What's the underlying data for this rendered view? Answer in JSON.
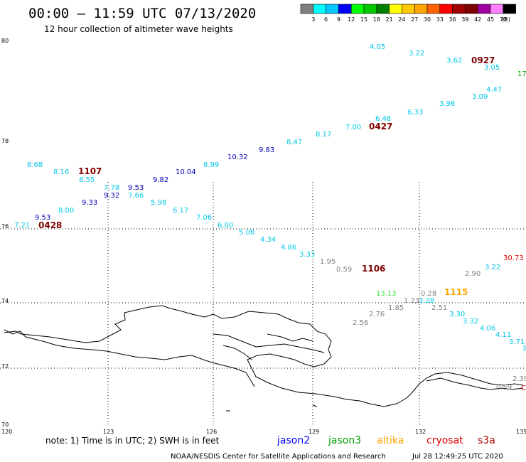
{
  "title": "00:00 — 11:59 UTC 07/13/2020",
  "subtitle": "12 hour collection of altimeter wave heights",
  "color_scale": {
    "ticks": [
      "3",
      "6",
      "9",
      "12",
      "15",
      "18",
      "21",
      "24",
      "27",
      "30",
      "33",
      "36",
      "39",
      "42",
      "45",
      "70"
    ],
    "unit": "(ft)",
    "colors": [
      "#808080",
      "#00ffff",
      "#00c8ff",
      "#0000ff",
      "#00ff00",
      "#00c800",
      "#008000",
      "#ffff00",
      "#ffc800",
      "#ffa500",
      "#ff6400",
      "#ff0000",
      "#a00000",
      "#800000",
      "#a000a0",
      "#ff80ff",
      "#000000"
    ]
  },
  "axes": {
    "lat_labels": [
      "80",
      "78",
      "76",
      "74",
      "72",
      "70"
    ],
    "lon_labels": [
      "120",
      "123",
      "126",
      "129",
      "132",
      "135"
    ]
  },
  "chart_data": {
    "type": "scatter",
    "readings": [
      {
        "text": "4.05",
        "color": "#00c8e6"
      },
      {
        "text": "3.22",
        "color": "#00c8e6"
      },
      {
        "text": "3.62",
        "color": "#00c8e6"
      },
      {
        "text": "3.05",
        "color": "#00c8e6"
      },
      {
        "text": "17",
        "color": "#00b000"
      },
      {
        "text": "4.47",
        "color": "#00c8e6"
      },
      {
        "text": "3.09",
        "color": "#00c8e6"
      },
      {
        "text": "3.98",
        "color": "#00c8e6"
      },
      {
        "text": "6.33",
        "color": "#00c8e6"
      },
      {
        "text": "6.46",
        "color": "#00c8e6"
      },
      {
        "text": "7.00",
        "color": "#00c8e6"
      },
      {
        "text": "8.17",
        "color": "#00c8e6"
      },
      {
        "text": "8.47",
        "color": "#00c8e6"
      },
      {
        "text": "9.83",
        "color": "#0000b4"
      },
      {
        "text": "10.32",
        "color": "#0000b4"
      },
      {
        "text": "8.99",
        "color": "#00c8e6"
      },
      {
        "text": "10.04",
        "color": "#0000b4"
      },
      {
        "text": "9.82",
        "color": "#0000b4"
      },
      {
        "text": "9.53",
        "color": "#0000b4"
      },
      {
        "text": "7.66",
        "color": "#00c8e6"
      },
      {
        "text": "7.78",
        "color": "#00c8e6"
      },
      {
        "text": "9.32",
        "color": "#0000b4"
      },
      {
        "text": "8.68",
        "color": "#00c8e6"
      },
      {
        "text": "8.16",
        "color": "#00c8e6"
      },
      {
        "text": "8.55",
        "color": "#00c8e6"
      },
      {
        "text": "9.33",
        "color": "#0000b4"
      },
      {
        "text": "8.00",
        "color": "#00c8e6"
      },
      {
        "text": "9.53",
        "color": "#0000b4"
      },
      {
        "text": "7.21",
        "color": "#00c8e6"
      },
      {
        "text": "5.98",
        "color": "#00c8e6"
      },
      {
        "text": "6.17",
        "color": "#00c8e6"
      },
      {
        "text": "7.06",
        "color": "#00c8e6"
      },
      {
        "text": "6.00",
        "color": "#00c8e6"
      },
      {
        "text": "5.08",
        "color": "#00c8e6"
      },
      {
        "text": "4.34",
        "color": "#00c8e6"
      },
      {
        "text": "4.86",
        "color": "#00c8e6"
      },
      {
        "text": "3.33",
        "color": "#00c8e6"
      },
      {
        "text": "1.95",
        "color": "#808080"
      },
      {
        "text": "0.59",
        "color": "#808080"
      },
      {
        "text": "2.90",
        "color": "#808080"
      },
      {
        "text": "3.22",
        "color": "#00c8e6"
      },
      {
        "text": "30.73",
        "color": "#e00000"
      },
      {
        "text": "13.13",
        "color": "#40e040"
      },
      {
        "text": "0.28",
        "color": "#808080"
      },
      {
        "text": "1.23",
        "color": "#808080"
      },
      {
        "text": "3.28",
        "color": "#00c8e6"
      },
      {
        "text": "1.85",
        "color": "#808080"
      },
      {
        "text": "2.51",
        "color": "#808080"
      },
      {
        "text": "2.76",
        "color": "#808080"
      },
      {
        "text": "2.56",
        "color": "#808080"
      },
      {
        "text": "3.30",
        "color": "#00c8e6"
      },
      {
        "text": "3.32",
        "color": "#00c8e6"
      },
      {
        "text": "4.06",
        "color": "#00c8e6"
      },
      {
        "text": "4.11",
        "color": "#00c8e6"
      },
      {
        "text": "3.71",
        "color": "#00c8e6"
      },
      {
        "text": "3",
        "color": "#00c8e6"
      },
      {
        "text": "2.39",
        "color": "#808080"
      },
      {
        "text": "0.59",
        "color": "#808080"
      },
      {
        "text": "C",
        "color": "#e00000"
      }
    ],
    "time_labels": [
      {
        "text": "0927",
        "color": "#800000"
      },
      {
        "text": "0427",
        "color": "#800000"
      },
      {
        "text": "1107",
        "color": "#800000"
      },
      {
        "text": "0428",
        "color": "#800000"
      },
      {
        "text": "1106",
        "color": "#800000"
      },
      {
        "text": "1115",
        "color": "#ffa500"
      }
    ]
  },
  "legend": {
    "note": "note:  1) Time is in UTC;  2) SWH is in feet",
    "satellites": [
      {
        "name": "jason2",
        "color": "#0000ff"
      },
      {
        "name": "jason3",
        "color": "#00a000"
      },
      {
        "name": "altika",
        "color": "#ffa500"
      },
      {
        "name": "cryosat",
        "color": "#e00000"
      },
      {
        "name": "s3a",
        "color": "#b00000"
      }
    ]
  },
  "footer": {
    "credit": "NOAA/NESDIS Center for Satellite Applications and Research",
    "timestamp": "Jul 28 12:49:25 UTC 2020"
  }
}
